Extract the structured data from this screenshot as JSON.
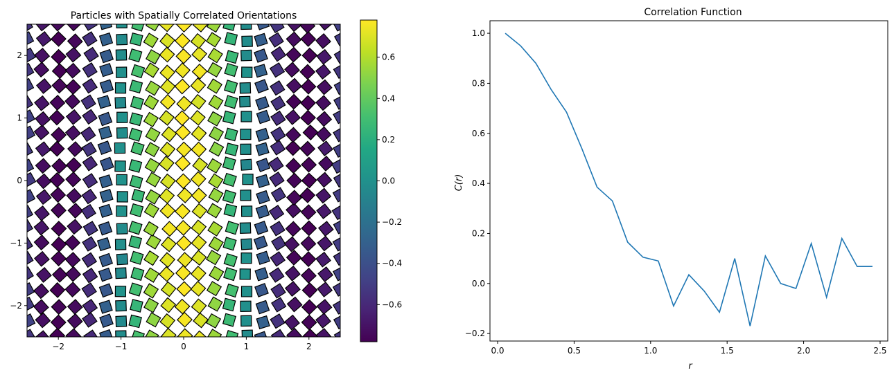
{
  "chart_data": [
    {
      "type": "scatter",
      "title": "Particles with Spatially Correlated Orientations",
      "xlabel": "",
      "ylabel": "",
      "xlim": [
        -2.5,
        2.5
      ],
      "ylim": [
        -2.5,
        2.5
      ],
      "x_ticks": [
        "−2",
        "−1",
        "0",
        "1",
        "2"
      ],
      "x_tick_values": [
        -2,
        -1,
        0,
        1,
        2
      ],
      "y_ticks": [
        "−2",
        "−1",
        "0",
        "1",
        "2"
      ],
      "y_tick_values": [
        -2,
        -1,
        0,
        1,
        2
      ],
      "marker": "square",
      "marker_edge_color": "#000000",
      "grid": {
        "x_min": -2.5,
        "x_max": 2.5,
        "y_min": -2.5,
        "y_max": 2.5,
        "spacing": 0.25
      },
      "orientation_model": "cos(1.6*x) * 0.78",
      "colorbar": {
        "colormap": "viridis",
        "range": [
          -0.78,
          0.78
        ],
        "ticks": [
          "−0.6",
          "−0.4",
          "−0.2",
          "0.0",
          "0.2",
          "0.4",
          "0.6"
        ],
        "tick_values": [
          -0.6,
          -0.4,
          -0.2,
          0.0,
          0.2,
          0.4,
          0.6
        ]
      },
      "grid_lines": false
    },
    {
      "type": "line",
      "title": "Correlation Function",
      "xlabel": "r",
      "ylabel": "C(r)",
      "xlim": [
        -0.05,
        2.55
      ],
      "ylim": [
        -0.23,
        1.05
      ],
      "x_ticks": [
        "0.0",
        "0.5",
        "1.0",
        "1.5",
        "2.0",
        "2.5"
      ],
      "x_tick_values": [
        0.0,
        0.5,
        1.0,
        1.5,
        2.0,
        2.5
      ],
      "y_ticks": [
        "−0.2",
        "0.0",
        "0.2",
        "0.4",
        "0.6",
        "0.8",
        "1.0"
      ],
      "y_tick_values": [
        -0.2,
        0.0,
        0.2,
        0.4,
        0.6,
        0.8,
        1.0
      ],
      "color": "#1f77b4",
      "x": [
        0.05,
        0.15,
        0.25,
        0.35,
        0.45,
        0.55,
        0.65,
        0.75,
        0.85,
        0.95,
        1.05,
        1.15,
        1.25,
        1.35,
        1.45,
        1.55,
        1.65,
        1.75,
        1.85,
        1.95,
        2.05,
        2.15,
        2.25,
        2.35,
        2.45
      ],
      "y": [
        1.0,
        0.95,
        0.88,
        0.775,
        0.685,
        0.54,
        0.385,
        0.33,
        0.165,
        0.105,
        0.09,
        -0.09,
        0.035,
        -0.03,
        -0.115,
        0.1,
        -0.17,
        0.11,
        0.0,
        -0.02,
        0.16,
        -0.055,
        0.18,
        0.068,
        0.068
      ],
      "grid_lines": false
    }
  ]
}
